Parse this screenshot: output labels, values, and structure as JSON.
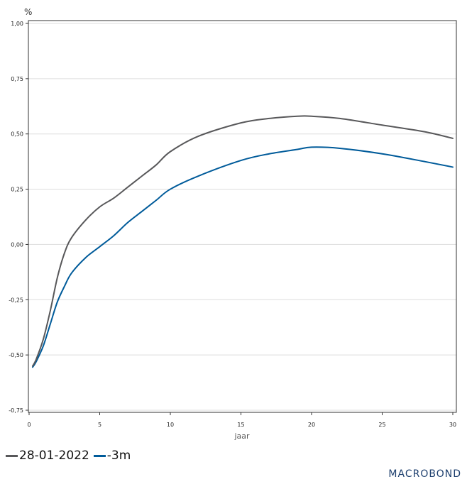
{
  "chart_data": {
    "type": "line",
    "unit_label": "%",
    "xlabel": "jaar",
    "xlim": [
      0,
      30
    ],
    "ylim": [
      -0.75,
      1.0
    ],
    "x_ticks": [
      0,
      5,
      10,
      15,
      20,
      25,
      30
    ],
    "x_tick_labels": [
      "0",
      "5",
      "10",
      "15",
      "20",
      "25",
      "30"
    ],
    "y_ticks": [
      -0.75,
      -0.5,
      -0.25,
      0.0,
      0.25,
      0.5,
      0.75,
      1.0
    ],
    "y_tick_labels": [
      "-0,75",
      "-0,50",
      "-0,25",
      "0,00",
      "0,25",
      "0,50",
      "0,75",
      "1,00"
    ],
    "grid": "horizontal",
    "legend_position": "bottom-left",
    "x": [
      0.25,
      0.5,
      1,
      1.5,
      2,
      2.5,
      3,
      4,
      5,
      6,
      7,
      8,
      9,
      10,
      12,
      15,
      17,
      19,
      20,
      22,
      25,
      28,
      30
    ],
    "series": [
      {
        "name": "28-01-2022",
        "color": "#58585a",
        "values": [
          -0.55,
          -0.52,
          -0.43,
          -0.3,
          -0.15,
          -0.04,
          0.03,
          0.11,
          0.17,
          0.21,
          0.26,
          0.31,
          0.36,
          0.42,
          0.49,
          0.55,
          0.57,
          0.58,
          0.58,
          0.57,
          0.54,
          0.51,
          0.48
        ]
      },
      {
        "name": "-3m",
        "color": "#005b9a",
        "values": [
          -0.555,
          -0.53,
          -0.46,
          -0.36,
          -0.26,
          -0.19,
          -0.13,
          -0.06,
          -0.01,
          0.04,
          0.1,
          0.15,
          0.2,
          0.25,
          0.31,
          0.38,
          0.41,
          0.43,
          0.44,
          0.435,
          0.41,
          0.375,
          0.35
        ]
      }
    ]
  },
  "branding": {
    "logo_text": "MACROBOND"
  }
}
